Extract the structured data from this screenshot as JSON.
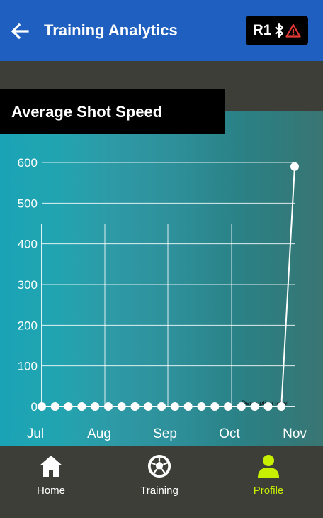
{
  "app_bar": {
    "title": "Training Analytics",
    "device_label": "R1",
    "bluetooth_icon": "bluetooth-icon",
    "warning_icon": "warning-triangle-icon",
    "color": "#1f5fbf"
  },
  "chart_card": {
    "title": "Average Shot Speed"
  },
  "chart_data": {
    "type": "line",
    "title": "Average Shot Speed",
    "x_tick_labels": [
      "Jul",
      "Aug",
      "Sep",
      "Oct",
      "Nov"
    ],
    "y_ticks": [
      0,
      100,
      200,
      300,
      400,
      500,
      600
    ],
    "ylim": [
      0,
      600
    ],
    "grid": true,
    "series": [
      {
        "values": [
          0,
          0,
          0,
          0,
          0,
          0,
          0,
          0,
          0,
          0,
          0,
          0,
          0,
          0,
          0,
          0,
          0,
          0,
          0,
          590
        ]
      }
    ],
    "annotation": "Description label"
  },
  "bottom_nav": {
    "items": [
      {
        "label": "Home",
        "icon": "home-icon",
        "active": false
      },
      {
        "label": "Training",
        "icon": "soccer-ball-icon",
        "active": false
      },
      {
        "label": "Profile",
        "icon": "profile-icon",
        "active": true
      }
    ],
    "active_color": "#c6f000",
    "inactive_color": "#ffffff"
  }
}
